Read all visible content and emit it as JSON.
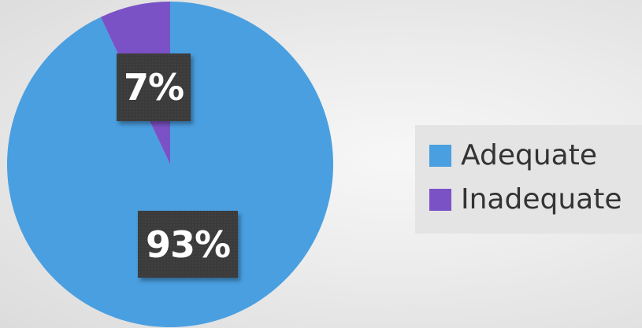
{
  "chart_data": {
    "type": "pie",
    "categories": [
      "Adequate",
      "Inadequate"
    ],
    "values": [
      93,
      7
    ],
    "data_labels": [
      "93%",
      "7%"
    ],
    "colors": {
      "Adequate": "#4a9fe0",
      "Inadequate": "#7b52c6"
    },
    "legend": {
      "placement": "right",
      "items": [
        {
          "label": "Adequate",
          "color": "#4a9fe0"
        },
        {
          "label": "Inadequate",
          "color": "#7b52c6"
        }
      ]
    },
    "title": "",
    "start_angle_deg": 0,
    "direction": "clockwise"
  }
}
